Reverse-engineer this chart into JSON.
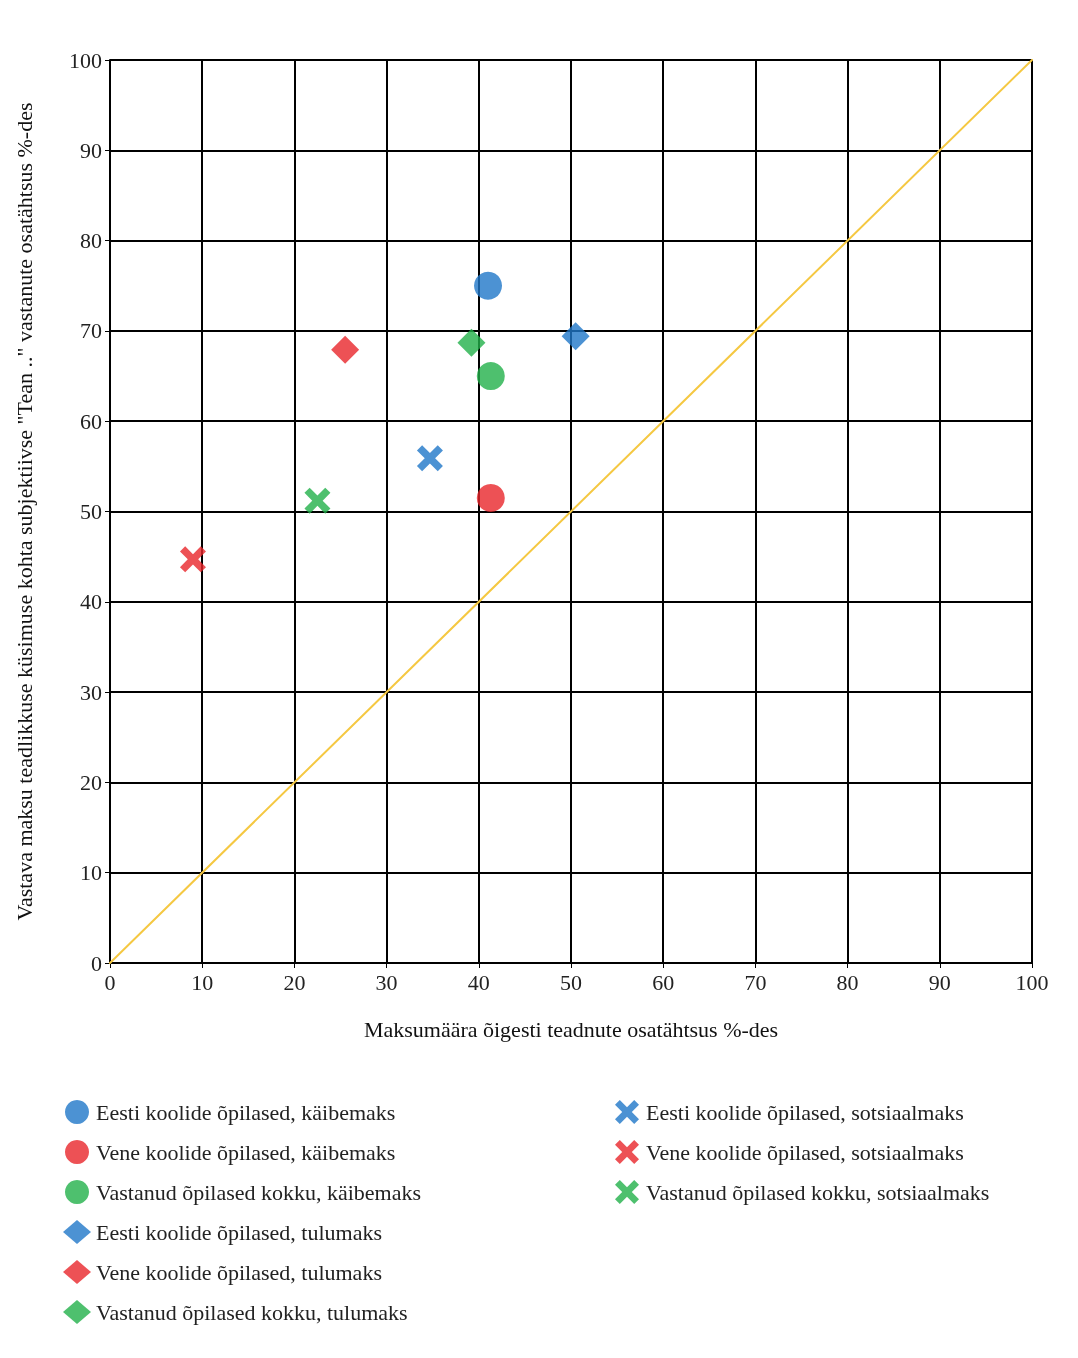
{
  "chart_data": {
    "type": "scatter",
    "xlabel": "Maksumäära õigesti teadnute osatähtsus %-des",
    "ylabel": "Vastava maksu teadlikkuse küsimuse kohta subjektiivse \"Tean ..\" vastanute osatähtsus %-des",
    "xlim": [
      0,
      100
    ],
    "xticks": [
      0,
      10,
      20,
      30,
      40,
      50,
      60,
      70,
      80,
      90,
      100
    ],
    "ylim": [
      0,
      100
    ],
    "yticks": [
      0,
      10,
      20,
      30,
      40,
      50,
      60,
      70,
      80,
      90,
      100
    ],
    "grid": true,
    "legend": "bottom",
    "series": [
      {
        "name": "Eesti koolide õpilased, käibemaks",
        "color": "#1f77c8",
        "marker": "circle",
        "x": [
          41
        ],
        "values": [
          75
        ]
      },
      {
        "name": "Vene koolide õpilased, käibemaks",
        "color": "#e8262a",
        "marker": "circle",
        "x": [
          41.3
        ],
        "values": [
          51.5
        ]
      },
      {
        "name": "Vastanud õpilased kokku, käibemaks",
        "color": "#22b04a",
        "marker": "circle",
        "x": [
          41.3
        ],
        "values": [
          65
        ]
      },
      {
        "name": "Eesti koolide õpilased, tulumaks",
        "color": "#1f77c8",
        "marker": "diamond",
        "x": [
          50.5
        ],
        "values": [
          69.4
        ]
      },
      {
        "name": "Vene koolide õpilased, tulumaks",
        "color": "#e8262a",
        "marker": "diamond",
        "x": [
          25.5
        ],
        "values": [
          67.9
        ]
      },
      {
        "name": "Vastanud õpilased kokku, tulumaks",
        "color": "#22b04a",
        "marker": "diamond",
        "x": [
          39.2
        ],
        "values": [
          68.7
        ]
      },
      {
        "name": "Eesti koolide õpilased, sotsiaalmaks",
        "color": "#1f77c8",
        "marker": "cross",
        "x": [
          34.7
        ],
        "values": [
          55.9
        ]
      },
      {
        "name": "Vene koolide õpilased, sotsiaalmaks",
        "color": "#e8262a",
        "marker": "cross",
        "x": [
          9
        ],
        "values": [
          44.7
        ]
      },
      {
        "name": "Vastanud õpilased kokku, sotsiaalmaks",
        "color": "#22b04a",
        "marker": "cross",
        "x": [
          22.5
        ],
        "values": [
          51.2
        ]
      },
      {
        "type": "line",
        "color": "#f5c842",
        "marker": "none",
        "x": [
          0,
          100
        ],
        "values": [
          0,
          100
        ]
      }
    ]
  }
}
